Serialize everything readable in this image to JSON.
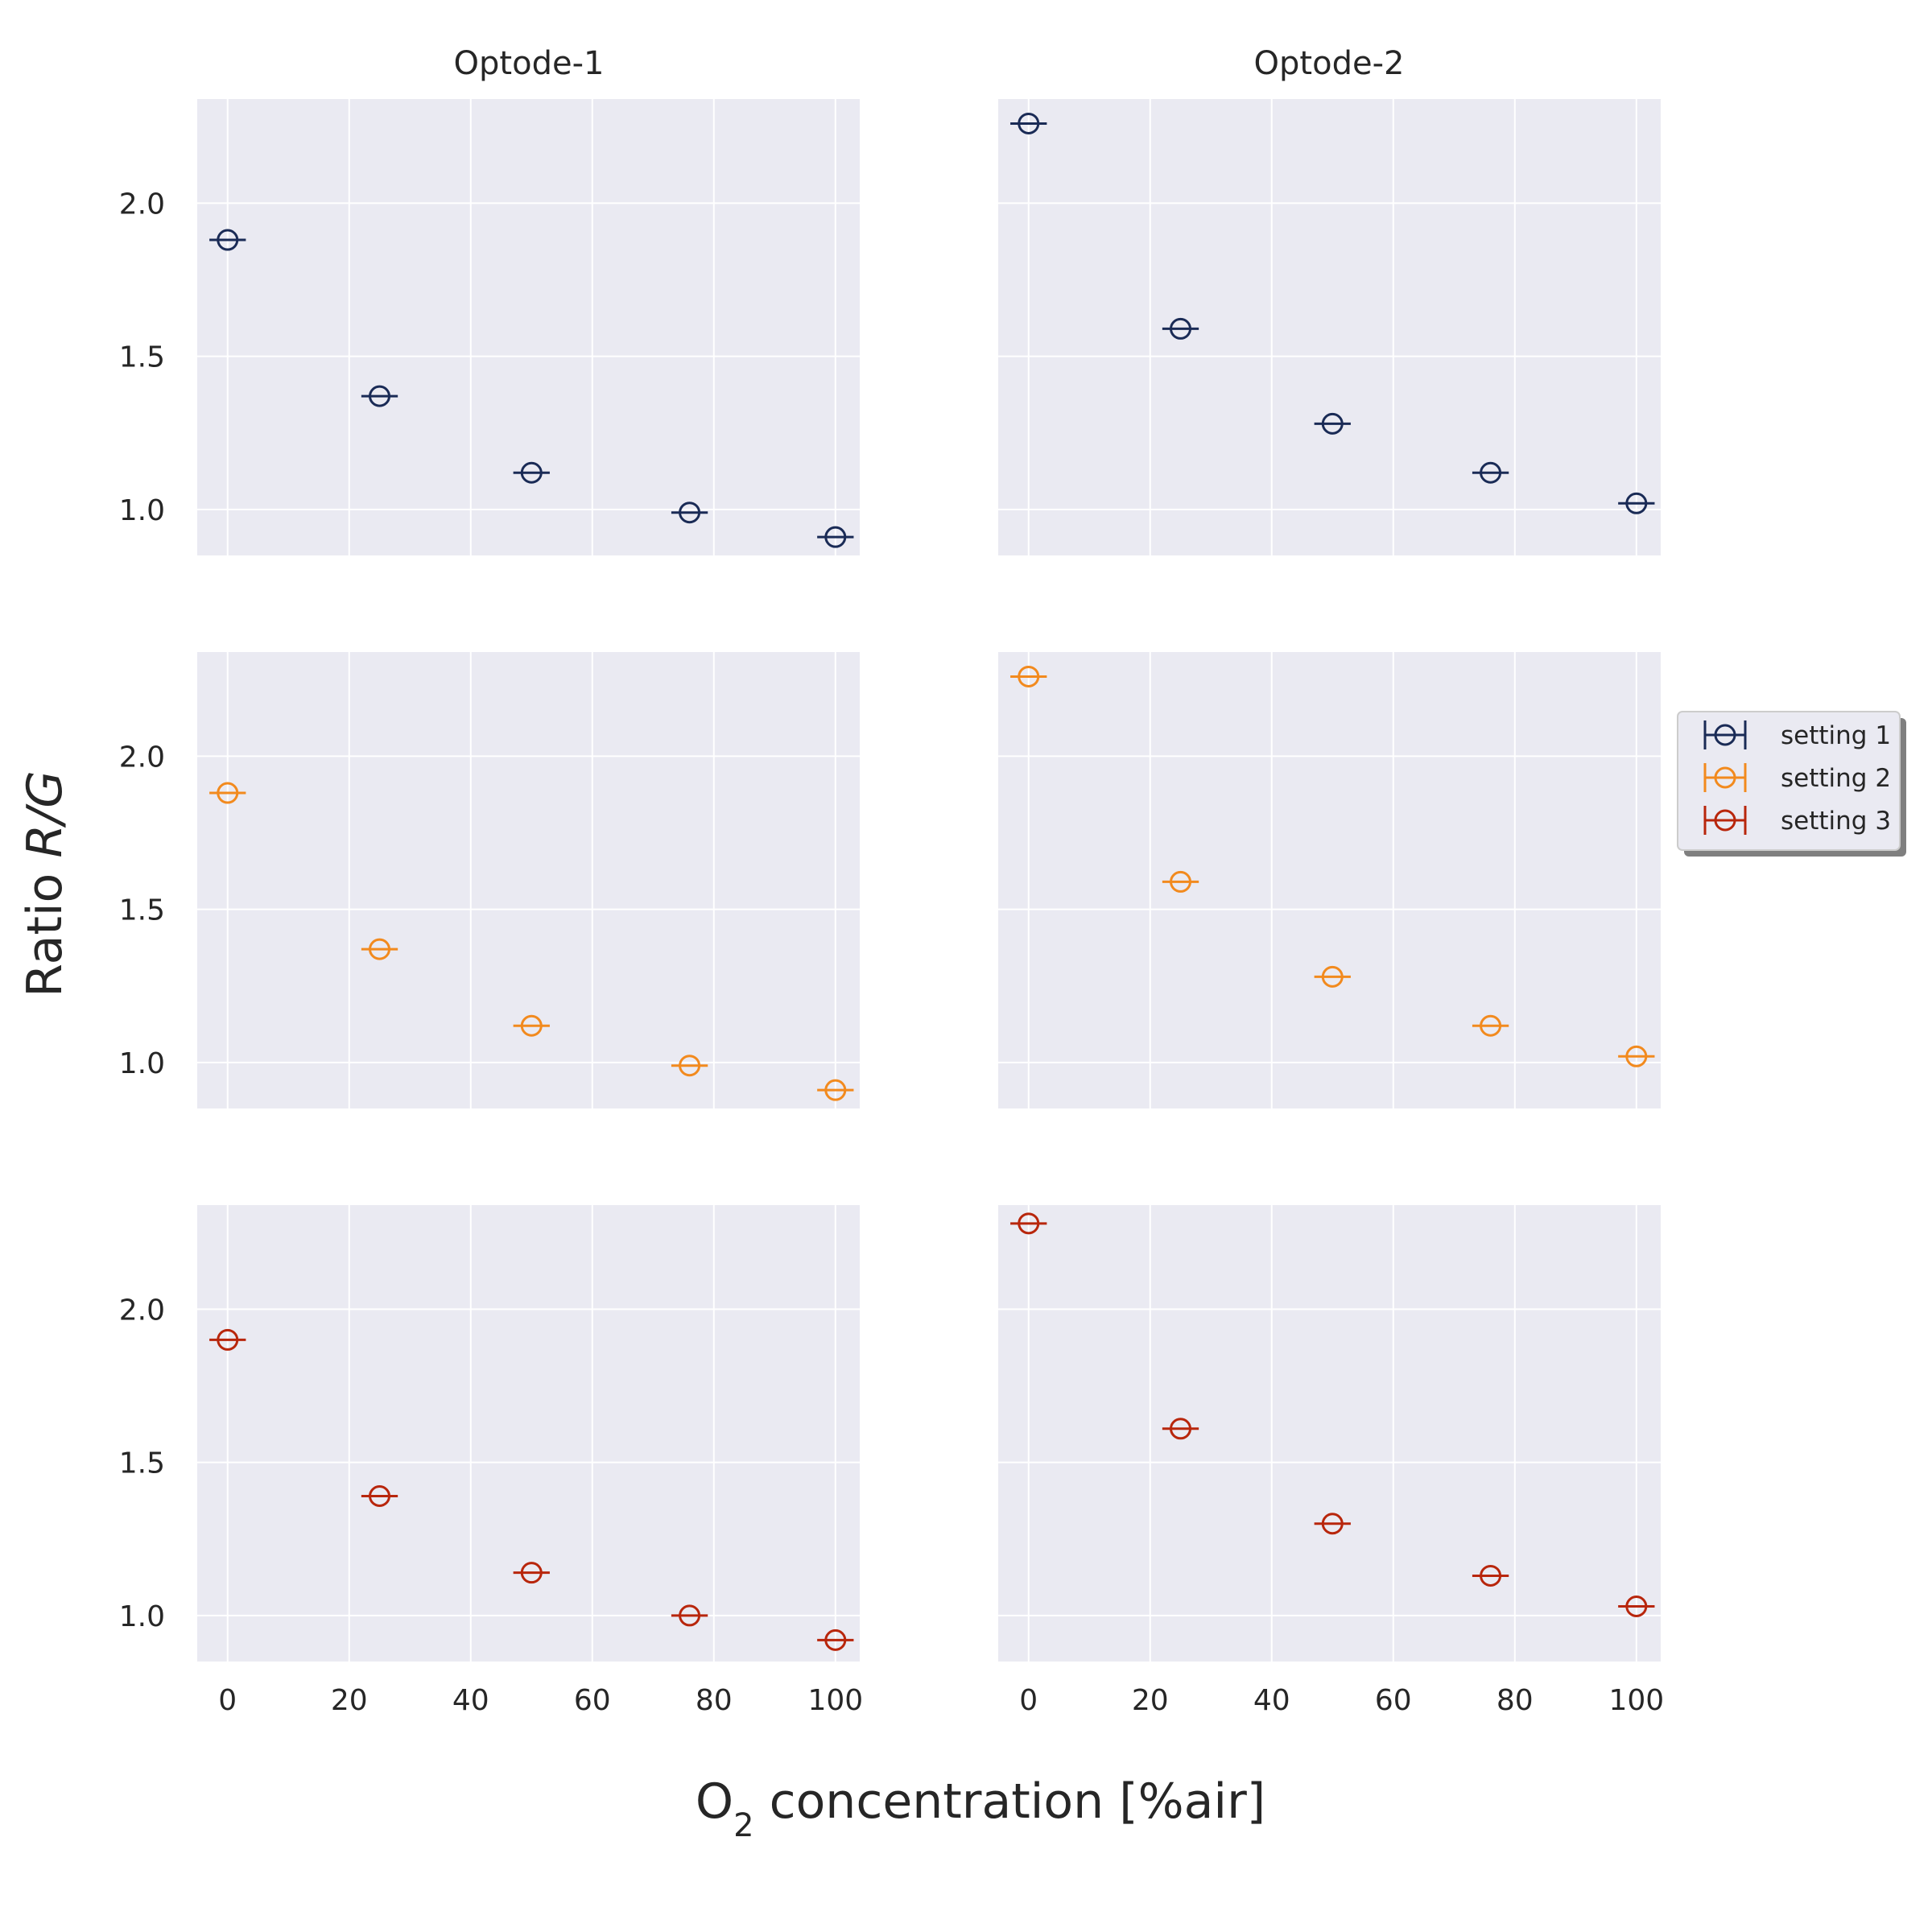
{
  "colors": {
    "panel_background": "#eaeaf2",
    "grid": "#ffffff",
    "setting_1": "#1a2b56",
    "setting_2": "#f28a1e",
    "setting_3": "#b8260c"
  },
  "figure": {
    "xlabel_main": "O",
    "xlabel_sub": "2",
    "xlabel_rest": " concentration [%air]",
    "ylabel_plain": "Ratio ",
    "ylabel_italic": "R/G"
  },
  "legend": {
    "placement": "right, beside middle row",
    "items": [
      {
        "label": "setting 1",
        "color": "#1a2b56"
      },
      {
        "label": "setting 2",
        "color": "#f28a1e"
      },
      {
        "label": "setting 3",
        "color": "#b8260c"
      }
    ]
  },
  "chart_data": {
    "type": "scatter",
    "layout": "3 rows x 2 columns, shared axes",
    "columns": [
      "Optode-1",
      "Optode-2"
    ],
    "rows": [
      "setting 1",
      "setting 2",
      "setting 3"
    ],
    "x_ticks": [
      0,
      20,
      40,
      60,
      80,
      100
    ],
    "y_ticks": [
      1.0,
      1.5,
      2.0
    ],
    "x_tick_labels": [
      "0",
      "20",
      "40",
      "60",
      "80",
      "100"
    ],
    "y_tick_labels": [
      "1.0",
      "1.5",
      "2.0"
    ],
    "xlim": [
      -5,
      104
    ],
    "ylim": [
      0.85,
      2.34
    ],
    "grid": true,
    "marker": "open circle with horizontal error bar",
    "x": [
      0,
      25,
      50,
      76,
      100
    ],
    "x_error": 3,
    "panels": [
      {
        "row": 0,
        "col": 0,
        "series": "setting 1",
        "y": [
          1.88,
          1.37,
          1.12,
          0.99,
          0.91
        ]
      },
      {
        "row": 0,
        "col": 1,
        "series": "setting 1",
        "y": [
          2.26,
          1.59,
          1.28,
          1.12,
          1.02
        ]
      },
      {
        "row": 1,
        "col": 0,
        "series": "setting 2",
        "y": [
          1.88,
          1.37,
          1.12,
          0.99,
          0.91
        ]
      },
      {
        "row": 1,
        "col": 1,
        "series": "setting 2",
        "y": [
          2.26,
          1.59,
          1.28,
          1.12,
          1.02
        ]
      },
      {
        "row": 2,
        "col": 0,
        "series": "setting 3",
        "y": [
          1.9,
          1.39,
          1.14,
          1.0,
          0.92
        ]
      },
      {
        "row": 2,
        "col": 1,
        "series": "setting 3",
        "y": [
          2.28,
          1.61,
          1.3,
          1.13,
          1.03
        ]
      }
    ]
  }
}
